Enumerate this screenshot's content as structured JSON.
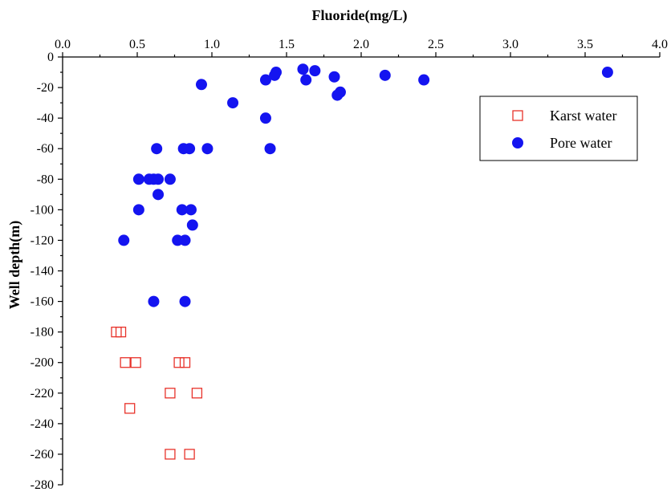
{
  "chart_data": {
    "type": "scatter",
    "xlabel": "Fluoride(mg/L)",
    "ylabel": "Well depth(m)",
    "xlim": [
      0.0,
      4.0
    ],
    "ylim": [
      -280,
      0
    ],
    "x_axis_position": "top",
    "x_ticks": [
      "0.0",
      "0.5",
      "1.0",
      "1.5",
      "2.0",
      "2.5",
      "3.0",
      "3.5",
      "4.0"
    ],
    "y_ticks": [
      "0",
      "-20",
      "-40",
      "-60",
      "-80",
      "-100",
      "-120",
      "-140",
      "-160",
      "-180",
      "-200",
      "-220",
      "-240",
      "-260",
      "-280"
    ],
    "grid": false,
    "legend_position": "top-right",
    "series": [
      {
        "name": "Karst water",
        "marker": "open-square",
        "color": "#e8322a",
        "points": [
          {
            "x": 0.36,
            "y": -180
          },
          {
            "x": 0.39,
            "y": -180
          },
          {
            "x": 0.42,
            "y": -200
          },
          {
            "x": 0.49,
            "y": -200
          },
          {
            "x": 0.78,
            "y": -200
          },
          {
            "x": 0.82,
            "y": -200
          },
          {
            "x": 0.72,
            "y": -220
          },
          {
            "x": 0.9,
            "y": -220
          },
          {
            "x": 0.45,
            "y": -230
          },
          {
            "x": 0.72,
            "y": -260
          },
          {
            "x": 0.85,
            "y": -260
          }
        ]
      },
      {
        "name": "Pore water",
        "marker": "filled-circle",
        "color": "#1414f0",
        "points": [
          {
            "x": 3.65,
            "y": -10
          },
          {
            "x": 2.42,
            "y": -15
          },
          {
            "x": 2.16,
            "y": -12
          },
          {
            "x": 1.86,
            "y": -23
          },
          {
            "x": 1.84,
            "y": -25
          },
          {
            "x": 1.82,
            "y": -13
          },
          {
            "x": 1.69,
            "y": -9
          },
          {
            "x": 1.63,
            "y": -15
          },
          {
            "x": 1.61,
            "y": -8
          },
          {
            "x": 1.43,
            "y": -10
          },
          {
            "x": 1.42,
            "y": -12
          },
          {
            "x": 1.36,
            "y": -15
          },
          {
            "x": 1.36,
            "y": -40
          },
          {
            "x": 1.39,
            "y": -60
          },
          {
            "x": 1.14,
            "y": -30
          },
          {
            "x": 0.93,
            "y": -18
          },
          {
            "x": 0.97,
            "y": -60
          },
          {
            "x": 0.85,
            "y": -60
          },
          {
            "x": 0.81,
            "y": -60
          },
          {
            "x": 0.63,
            "y": -60
          },
          {
            "x": 0.51,
            "y": -80
          },
          {
            "x": 0.58,
            "y": -80
          },
          {
            "x": 0.61,
            "y": -80
          },
          {
            "x": 0.64,
            "y": -80
          },
          {
            "x": 0.72,
            "y": -80
          },
          {
            "x": 0.64,
            "y": -90
          },
          {
            "x": 0.51,
            "y": -100
          },
          {
            "x": 0.8,
            "y": -100
          },
          {
            "x": 0.86,
            "y": -100
          },
          {
            "x": 0.87,
            "y": -110
          },
          {
            "x": 0.41,
            "y": -120
          },
          {
            "x": 0.77,
            "y": -120
          },
          {
            "x": 0.82,
            "y": -120
          },
          {
            "x": 0.61,
            "y": -160
          },
          {
            "x": 0.82,
            "y": -160
          }
        ]
      }
    ]
  }
}
